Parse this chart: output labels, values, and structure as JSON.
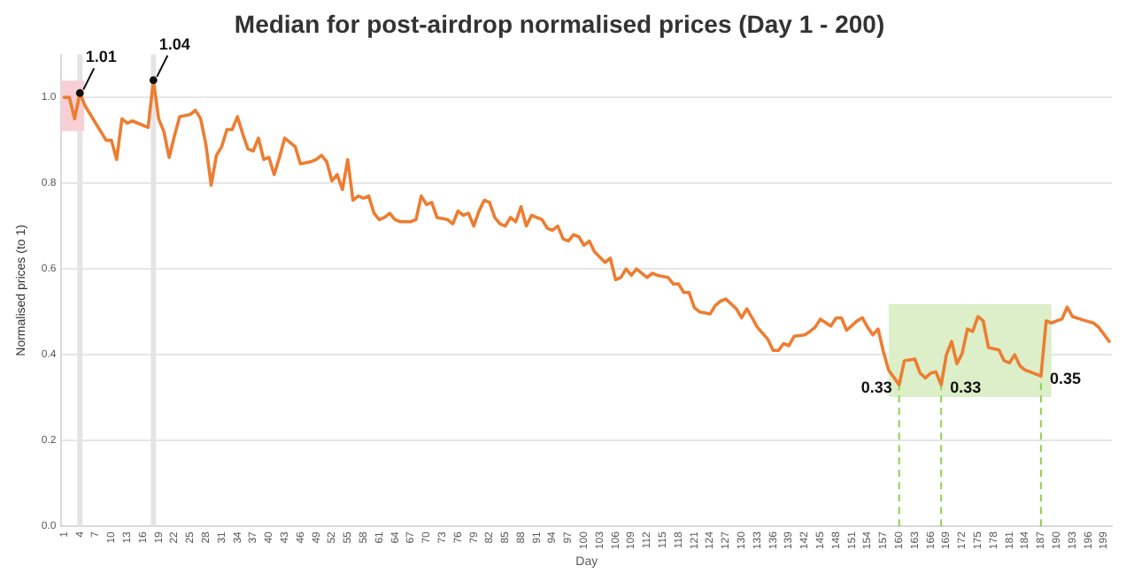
{
  "chart_data": {
    "type": "line",
    "title": "Median for post-airdrop normalised prices (Day 1 - 200)",
    "xlabel": "Day",
    "ylabel": "Normalised prices (to 1)",
    "x": [
      1,
      2,
      3,
      4,
      5,
      7,
      9,
      10,
      11,
      12,
      13,
      14,
      15,
      17,
      18,
      19,
      20,
      21,
      22,
      23,
      25,
      26,
      27,
      28,
      29,
      30,
      31,
      32,
      33,
      34,
      35,
      36,
      37,
      38,
      39,
      40,
      41,
      42,
      43,
      45,
      46,
      48,
      49,
      50,
      51,
      52,
      53,
      54,
      55,
      56,
      57,
      58,
      59,
      60,
      61,
      62,
      63,
      64,
      65,
      67,
      68,
      69,
      70,
      71,
      72,
      74,
      75,
      76,
      77,
      78,
      79,
      80,
      81,
      82,
      83,
      84,
      85,
      86,
      87,
      88,
      89,
      90,
      92,
      93,
      94,
      95,
      96,
      97,
      98,
      99,
      100,
      101,
      102,
      104,
      105,
      106,
      107,
      108,
      109,
      110,
      112,
      113,
      114,
      116,
      117,
      118,
      119,
      120,
      121,
      122,
      124,
      125,
      126,
      127,
      129,
      130,
      131,
      132,
      133,
      135,
      136,
      137,
      138,
      139,
      140,
      142,
      143,
      144,
      145,
      147,
      148,
      149,
      150,
      152,
      153,
      154,
      155,
      156,
      157,
      158,
      160,
      161,
      163,
      164,
      165,
      166,
      167,
      168,
      169,
      170,
      171,
      172,
      173,
      174,
      175,
      176,
      177,
      179,
      180,
      181,
      182,
      183,
      184,
      185,
      187,
      188,
      189,
      190,
      191,
      192,
      193,
      195,
      197,
      198,
      200
    ],
    "series": [
      {
        "color": "#ed7d31",
        "values": [
          1.0,
          1.0,
          0.95,
          1.01,
          0.98,
          0.94,
          0.9,
          0.9,
          0.855,
          0.95,
          0.94,
          0.945,
          0.94,
          0.93,
          1.04,
          0.95,
          0.92,
          0.86,
          0.91,
          0.955,
          0.96,
          0.97,
          0.95,
          0.89,
          0.795,
          0.865,
          0.885,
          0.925,
          0.925,
          0.955,
          0.915,
          0.88,
          0.875,
          0.905,
          0.855,
          0.86,
          0.82,
          0.86,
          0.905,
          0.885,
          0.845,
          0.85,
          0.855,
          0.865,
          0.85,
          0.805,
          0.82,
          0.785,
          0.855,
          0.76,
          0.77,
          0.765,
          0.77,
          0.73,
          0.715,
          0.72,
          0.73,
          0.715,
          0.71,
          0.71,
          0.715,
          0.77,
          0.75,
          0.755,
          0.72,
          0.715,
          0.705,
          0.735,
          0.725,
          0.73,
          0.7,
          0.735,
          0.76,
          0.755,
          0.72,
          0.705,
          0.7,
          0.72,
          0.71,
          0.745,
          0.7,
          0.725,
          0.715,
          0.695,
          0.69,
          0.7,
          0.67,
          0.665,
          0.68,
          0.675,
          0.655,
          0.665,
          0.64,
          0.615,
          0.625,
          0.575,
          0.58,
          0.6,
          0.585,
          0.6,
          0.58,
          0.59,
          0.585,
          0.58,
          0.565,
          0.565,
          0.545,
          0.545,
          0.51,
          0.5,
          0.495,
          0.515,
          0.525,
          0.53,
          0.507,
          0.486,
          0.507,
          0.486,
          0.464,
          0.436,
          0.41,
          0.41,
          0.426,
          0.421,
          0.443,
          0.446,
          0.454,
          0.464,
          0.483,
          0.467,
          0.486,
          0.486,
          0.457,
          0.479,
          0.486,
          0.464,
          0.446,
          0.46,
          0.407,
          0.364,
          0.33,
          0.386,
          0.39,
          0.357,
          0.346,
          0.357,
          0.36,
          0.33,
          0.4,
          0.431,
          0.379,
          0.403,
          0.46,
          0.454,
          0.489,
          0.479,
          0.417,
          0.411,
          0.386,
          0.381,
          0.4,
          0.374,
          0.364,
          0.36,
          0.35,
          0.479,
          0.474,
          0.479,
          0.483,
          0.511,
          0.489,
          0.481,
          0.474,
          0.464,
          0.431
        ]
      }
    ],
    "xlim": [
      0.5,
      200.5
    ],
    "xticks": [
      1,
      4,
      7,
      10,
      13,
      16,
      19,
      22,
      25,
      28,
      31,
      34,
      37,
      40,
      43,
      46,
      49,
      52,
      55,
      58,
      61,
      64,
      67,
      70,
      73,
      76,
      79,
      82,
      85,
      88,
      91,
      94,
      97,
      100,
      103,
      106,
      109,
      112,
      115,
      118,
      121,
      124,
      127,
      130,
      133,
      136,
      139,
      142,
      145,
      148,
      151,
      154,
      157,
      160,
      163,
      166,
      169,
      172,
      175,
      178,
      181,
      184,
      187,
      190,
      193,
      196,
      199
    ],
    "ylim": [
      0,
      1.1
    ],
    "yticks": [
      {
        "value": 0,
        "label": "0.0"
      },
      0.2,
      0.4,
      0.6,
      0.8,
      {
        "value": 1,
        "label": "1.0"
      }
    ],
    "grid": "y",
    "legend": false,
    "marker": "none",
    "line_style": "solid",
    "bands": [
      {
        "axis": "x",
        "from": 3.5,
        "to": 4.5,
        "color": "#e4e4e4"
      },
      {
        "axis": "x",
        "from": 17.5,
        "to": 18.5,
        "color": "#e4e4e4"
      },
      {
        "axis": "x",
        "from": 0.5,
        "to": 4.8,
        "color": "#f8cfd4"
      },
      {
        "axis": "x",
        "from": 158,
        "to": 189,
        "color": "#dcefc8"
      }
    ],
    "ref_lines": [
      {
        "axis": "x",
        "value": 160,
        "color": "#92d050",
        "line_style": "dashed"
      },
      {
        "axis": "x",
        "value": 168,
        "color": "#92d050",
        "line_style": "dashed"
      },
      {
        "axis": "x",
        "value": 187,
        "color": "#92d050",
        "line_style": "dashed"
      }
    ],
    "annotations": [
      {
        "text": "1.01",
        "x": 4,
        "y": 1.01
      },
      {
        "text": "1.04",
        "x": 18,
        "y": 1.04
      },
      {
        "text": "0.33",
        "x": 160,
        "y": 0.33
      },
      {
        "text": "0.33",
        "x": 168,
        "y": 0.33
      },
      {
        "text": "0.35",
        "x": 187,
        "y": 0.35
      }
    ]
  }
}
